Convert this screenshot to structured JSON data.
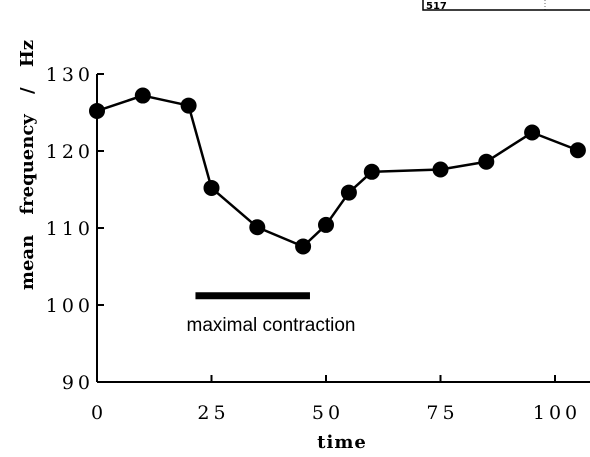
{
  "chart_data": {
    "type": "line",
    "xlabel": "time",
    "ylabel": "mean frequency / Hz",
    "xlim": [
      0,
      105
    ],
    "ylim": [
      90,
      130
    ],
    "x_ticks": [
      "0",
      "25",
      "50",
      "75",
      "100"
    ],
    "y_ticks": [
      "90",
      "100",
      "110",
      "120",
      "130"
    ],
    "series": [
      {
        "x": [
          0,
          10,
          20,
          25,
          35,
          45,
          50,
          55,
          60,
          75,
          85,
          95,
          105
        ],
        "y": [
          125.2,
          127.2,
          125.9,
          115.2,
          110.1,
          107.6,
          110.4,
          114.6,
          117.3,
          117.6,
          118.6,
          122.4,
          120.1
        ]
      }
    ],
    "annotation": {
      "text": "maximal contraction",
      "x_start": 21.5,
      "x_end": 46.5,
      "y": 101.2
    },
    "corner_label": "517"
  }
}
